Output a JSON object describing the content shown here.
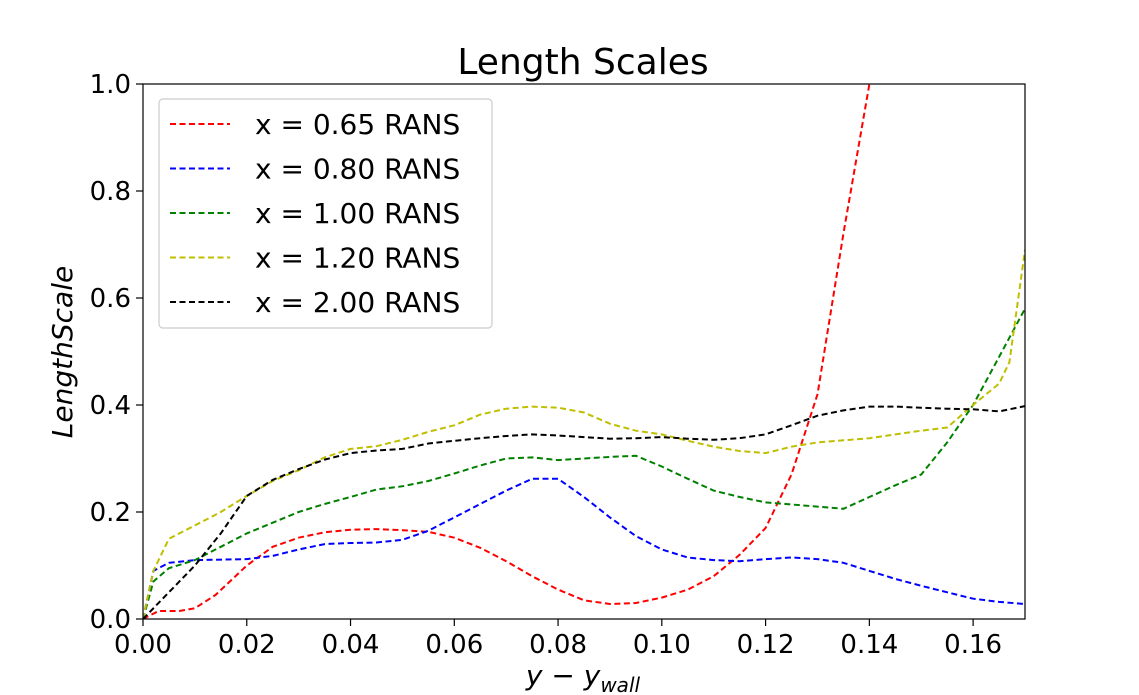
{
  "chart_data": {
    "type": "line",
    "title": "Length Scales",
    "xlabel": "y − y",
    "xlabel_sub": "wall",
    "ylabel": "LengthScale",
    "xlim": [
      0,
      0.17
    ],
    "ylim": [
      0,
      1.0
    ],
    "xticks": [
      0.0,
      0.02,
      0.04,
      0.06,
      0.08,
      0.1,
      0.12,
      0.14,
      0.16
    ],
    "xtick_labels": [
      "0.00",
      "0.02",
      "0.04",
      "0.06",
      "0.08",
      "0.10",
      "0.12",
      "0.14",
      "0.16"
    ],
    "yticks": [
      0.0,
      0.2,
      0.4,
      0.6,
      0.8,
      1.0
    ],
    "ytick_labels": [
      "0.0",
      "0.2",
      "0.4",
      "0.6",
      "0.8",
      "1.0"
    ],
    "grid": false,
    "legend_position": "top-left",
    "series": [
      {
        "name": "x = 0.65 RANS",
        "color": "#ff0000",
        "x": [
          0,
          0.003,
          0.007,
          0.01,
          0.014,
          0.02,
          0.025,
          0.03,
          0.035,
          0.04,
          0.045,
          0.05,
          0.055,
          0.06,
          0.065,
          0.07,
          0.075,
          0.08,
          0.085,
          0.09,
          0.095,
          0.1,
          0.105,
          0.11,
          0.115,
          0.12,
          0.125,
          0.13,
          0.135,
          0.14
        ],
        "y": [
          0.0,
          0.015,
          0.015,
          0.02,
          0.045,
          0.1,
          0.135,
          0.152,
          0.162,
          0.167,
          0.168,
          0.166,
          0.163,
          0.152,
          0.133,
          0.108,
          0.08,
          0.055,
          0.035,
          0.028,
          0.03,
          0.04,
          0.055,
          0.08,
          0.12,
          0.17,
          0.27,
          0.42,
          0.72,
          1.0
        ]
      },
      {
        "name": "x = 0.80 RANS",
        "color": "#0000ff",
        "x": [
          0,
          0.002,
          0.005,
          0.01,
          0.02,
          0.025,
          0.03,
          0.035,
          0.04,
          0.045,
          0.05,
          0.055,
          0.06,
          0.065,
          0.07,
          0.075,
          0.08,
          0.085,
          0.09,
          0.095,
          0.1,
          0.105,
          0.11,
          0.115,
          0.12,
          0.125,
          0.13,
          0.135,
          0.14,
          0.145,
          0.15,
          0.155,
          0.16,
          0.165,
          0.17
        ],
        "y": [
          0.0,
          0.09,
          0.105,
          0.11,
          0.112,
          0.118,
          0.13,
          0.14,
          0.142,
          0.143,
          0.148,
          0.165,
          0.19,
          0.215,
          0.24,
          0.262,
          0.262,
          0.228,
          0.19,
          0.155,
          0.13,
          0.115,
          0.11,
          0.108,
          0.112,
          0.115,
          0.112,
          0.105,
          0.09,
          0.075,
          0.062,
          0.05,
          0.038,
          0.032,
          0.028
        ]
      },
      {
        "name": "x = 1.00 RANS",
        "color": "#008000",
        "x": [
          0,
          0.002,
          0.005,
          0.01,
          0.015,
          0.02,
          0.025,
          0.03,
          0.035,
          0.04,
          0.045,
          0.05,
          0.055,
          0.06,
          0.065,
          0.07,
          0.075,
          0.08,
          0.085,
          0.09,
          0.095,
          0.1,
          0.105,
          0.11,
          0.115,
          0.12,
          0.125,
          0.13,
          0.135,
          0.14,
          0.145,
          0.15,
          0.155,
          0.16,
          0.165,
          0.17
        ],
        "y": [
          0.0,
          0.07,
          0.095,
          0.11,
          0.135,
          0.16,
          0.18,
          0.2,
          0.215,
          0.228,
          0.242,
          0.248,
          0.258,
          0.272,
          0.287,
          0.3,
          0.302,
          0.297,
          0.3,
          0.303,
          0.305,
          0.285,
          0.262,
          0.24,
          0.228,
          0.218,
          0.214,
          0.21,
          0.206,
          0.228,
          0.25,
          0.27,
          0.33,
          0.4,
          0.49,
          0.58
        ]
      },
      {
        "name": "x = 1.20 RANS",
        "color": "#bfbf00",
        "x": [
          0,
          0.002,
          0.005,
          0.01,
          0.015,
          0.02,
          0.025,
          0.03,
          0.035,
          0.04,
          0.045,
          0.05,
          0.055,
          0.06,
          0.065,
          0.07,
          0.075,
          0.08,
          0.085,
          0.09,
          0.095,
          0.1,
          0.105,
          0.11,
          0.115,
          0.12,
          0.125,
          0.13,
          0.135,
          0.14,
          0.145,
          0.15,
          0.155,
          0.16,
          0.165,
          0.167,
          0.17
        ],
        "y": [
          0.0,
          0.09,
          0.15,
          0.175,
          0.2,
          0.23,
          0.258,
          0.278,
          0.302,
          0.318,
          0.323,
          0.335,
          0.35,
          0.362,
          0.382,
          0.393,
          0.397,
          0.395,
          0.386,
          0.365,
          0.352,
          0.345,
          0.333,
          0.322,
          0.314,
          0.31,
          0.322,
          0.33,
          0.334,
          0.338,
          0.345,
          0.352,
          0.358,
          0.4,
          0.44,
          0.48,
          0.69
        ]
      },
      {
        "name": "x = 2.00 RANS",
        "color": "#000000",
        "x": [
          0,
          0.005,
          0.01,
          0.015,
          0.02,
          0.025,
          0.03,
          0.035,
          0.04,
          0.045,
          0.05,
          0.055,
          0.06,
          0.065,
          0.07,
          0.075,
          0.08,
          0.085,
          0.09,
          0.095,
          0.1,
          0.105,
          0.11,
          0.115,
          0.12,
          0.125,
          0.13,
          0.135,
          0.14,
          0.145,
          0.15,
          0.155,
          0.16,
          0.165,
          0.17
        ],
        "y": [
          0.0,
          0.05,
          0.1,
          0.16,
          0.23,
          0.26,
          0.28,
          0.298,
          0.31,
          0.315,
          0.318,
          0.328,
          0.333,
          0.338,
          0.342,
          0.345,
          0.343,
          0.34,
          0.337,
          0.338,
          0.34,
          0.337,
          0.335,
          0.338,
          0.345,
          0.362,
          0.38,
          0.39,
          0.397,
          0.397,
          0.395,
          0.393,
          0.392,
          0.388,
          0.398
        ]
      }
    ]
  }
}
